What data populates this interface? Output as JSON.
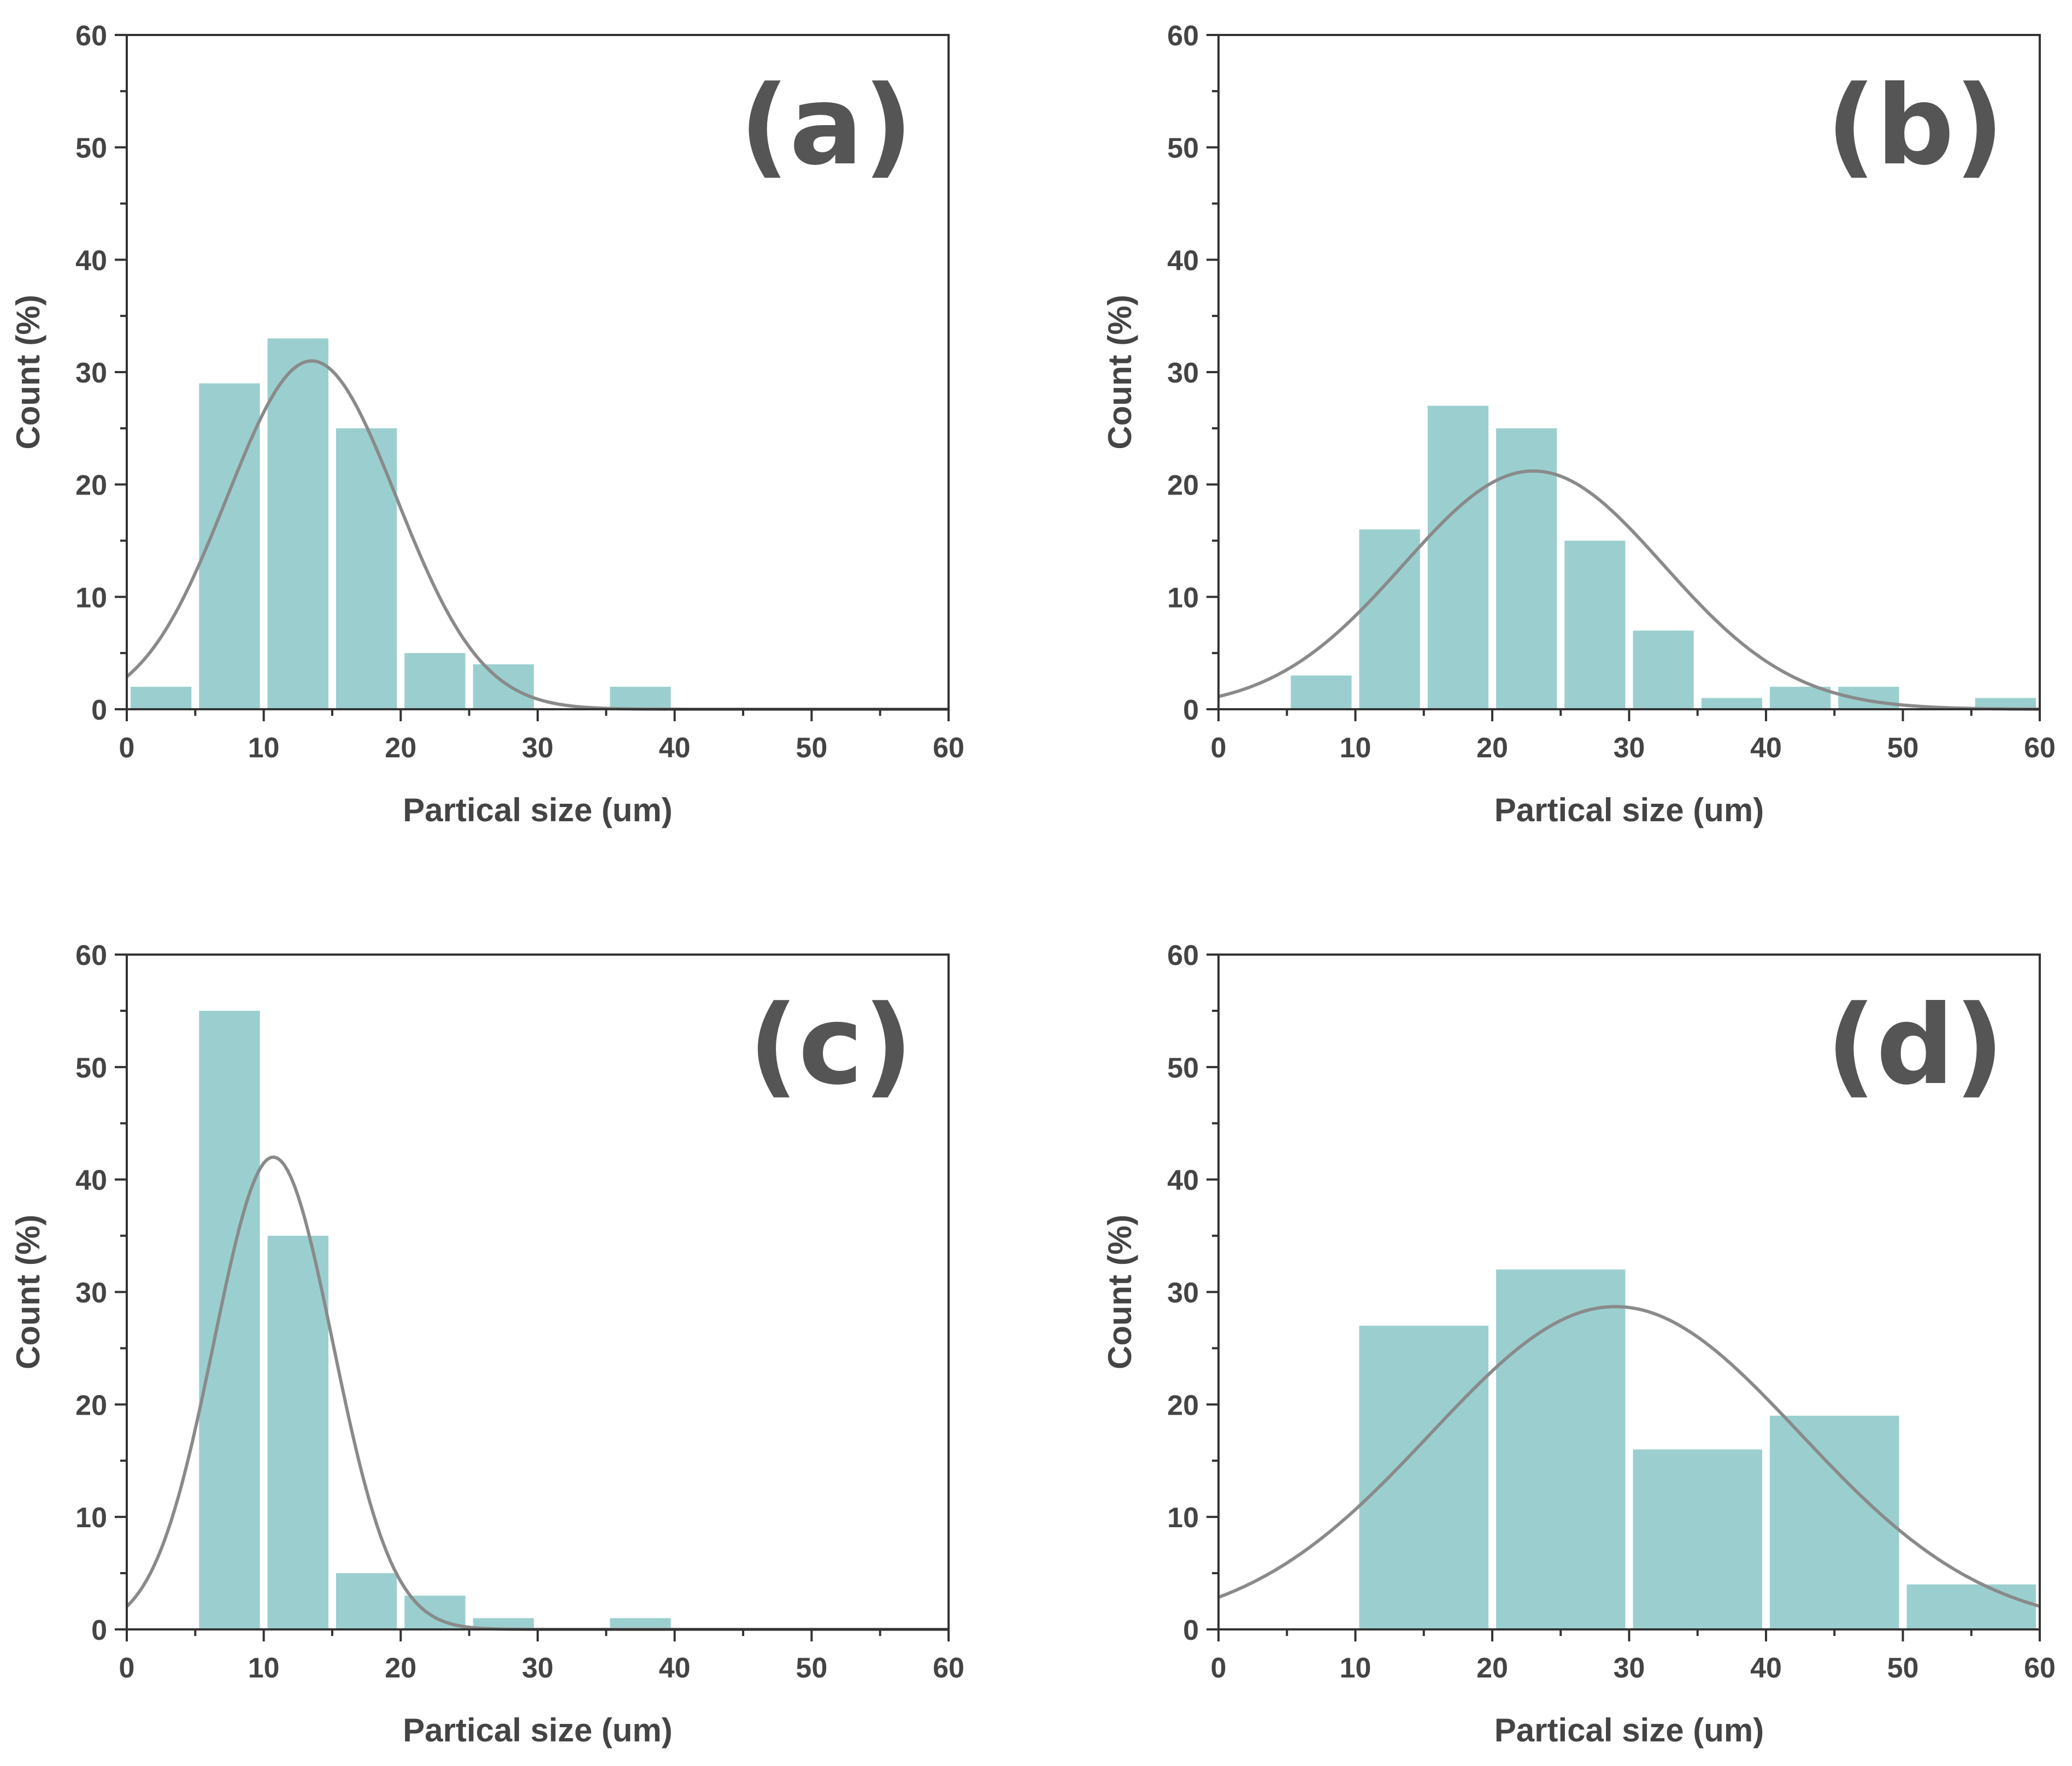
{
  "colors": {
    "bar": "#9bcfcf",
    "curve": "#8a8a8a",
    "axis": "#333333",
    "text": "#444444"
  },
  "chart_data": [
    {
      "type": "bar",
      "panel": "(a)",
      "xlabel": "Partical size (um)",
      "ylabel": "Count (%)",
      "xlim": [
        0,
        60
      ],
      "ylim": [
        0,
        60
      ],
      "xticks": [
        0,
        10,
        20,
        30,
        40,
        50,
        60
      ],
      "yticks": [
        0,
        10,
        20,
        30,
        40,
        50,
        60
      ],
      "bin_width": 5,
      "bins": [
        {
          "x0": 0,
          "x1": 5,
          "value": 2
        },
        {
          "x0": 5,
          "x1": 10,
          "value": 29
        },
        {
          "x0": 10,
          "x1": 15,
          "value": 33
        },
        {
          "x0": 15,
          "x1": 20,
          "value": 25
        },
        {
          "x0": 20,
          "x1": 25,
          "value": 5
        },
        {
          "x0": 25,
          "x1": 30,
          "value": 4
        },
        {
          "x0": 35,
          "x1": 40,
          "value": 2
        }
      ],
      "fit": {
        "type": "gaussian",
        "mean": 13.5,
        "sigma": 6.2,
        "peak": 31
      }
    },
    {
      "type": "bar",
      "panel": "(b)",
      "xlabel": "Partical size (um)",
      "ylabel": "Count (%)",
      "xlim": [
        0,
        60
      ],
      "ylim": [
        0,
        60
      ],
      "xticks": [
        0,
        10,
        20,
        30,
        40,
        50,
        60
      ],
      "yticks": [
        0,
        10,
        20,
        30,
        40,
        50,
        60
      ],
      "bin_width": 5,
      "bins": [
        {
          "x0": 5,
          "x1": 10,
          "value": 3
        },
        {
          "x0": 10,
          "x1": 15,
          "value": 16
        },
        {
          "x0": 15,
          "x1": 20,
          "value": 27
        },
        {
          "x0": 20,
          "x1": 25,
          "value": 25
        },
        {
          "x0": 25,
          "x1": 30,
          "value": 15
        },
        {
          "x0": 30,
          "x1": 35,
          "value": 7
        },
        {
          "x0": 35,
          "x1": 40,
          "value": 1
        },
        {
          "x0": 40,
          "x1": 45,
          "value": 2
        },
        {
          "x0": 45,
          "x1": 50,
          "value": 2
        },
        {
          "x0": 55,
          "x1": 60,
          "value": 1
        }
      ],
      "fit": {
        "type": "gaussian",
        "mean": 23,
        "sigma": 9.5,
        "peak": 21.2
      }
    },
    {
      "type": "bar",
      "panel": "(c)",
      "xlabel": "Partical size (um)",
      "ylabel": "Count (%)",
      "xlim": [
        0,
        60
      ],
      "ylim": [
        0,
        60
      ],
      "xticks": [
        0,
        10,
        20,
        30,
        40,
        50,
        60
      ],
      "yticks": [
        0,
        10,
        20,
        30,
        40,
        50,
        60
      ],
      "bin_width": 5,
      "bins": [
        {
          "x0": 5,
          "x1": 10,
          "value": 55
        },
        {
          "x0": 10,
          "x1": 15,
          "value": 35
        },
        {
          "x0": 15,
          "x1": 20,
          "value": 5
        },
        {
          "x0": 20,
          "x1": 25,
          "value": 3
        },
        {
          "x0": 25,
          "x1": 30,
          "value": 1
        },
        {
          "x0": 35,
          "x1": 40,
          "value": 1
        }
      ],
      "fit": {
        "type": "gaussian",
        "mean": 10.7,
        "sigma": 4.35,
        "peak": 42
      }
    },
    {
      "type": "bar",
      "panel": "(d)",
      "xlabel": "Partical size (um)",
      "ylabel": "Count (%)",
      "xlim": [
        0,
        60
      ],
      "ylim": [
        0,
        60
      ],
      "xticks": [
        0,
        10,
        20,
        30,
        40,
        50,
        60
      ],
      "yticks": [
        0,
        10,
        20,
        30,
        40,
        50,
        60
      ],
      "bin_width": 10,
      "bins": [
        {
          "x0": 10,
          "x1": 20,
          "value": 27
        },
        {
          "x0": 20,
          "x1": 30,
          "value": 32
        },
        {
          "x0": 30,
          "x1": 40,
          "value": 16
        },
        {
          "x0": 40,
          "x1": 50,
          "value": 19
        },
        {
          "x0": 50,
          "x1": 60,
          "value": 4
        }
      ],
      "fit": {
        "type": "gaussian",
        "mean": 29,
        "sigma": 13.5,
        "peak": 28.7
      }
    }
  ]
}
